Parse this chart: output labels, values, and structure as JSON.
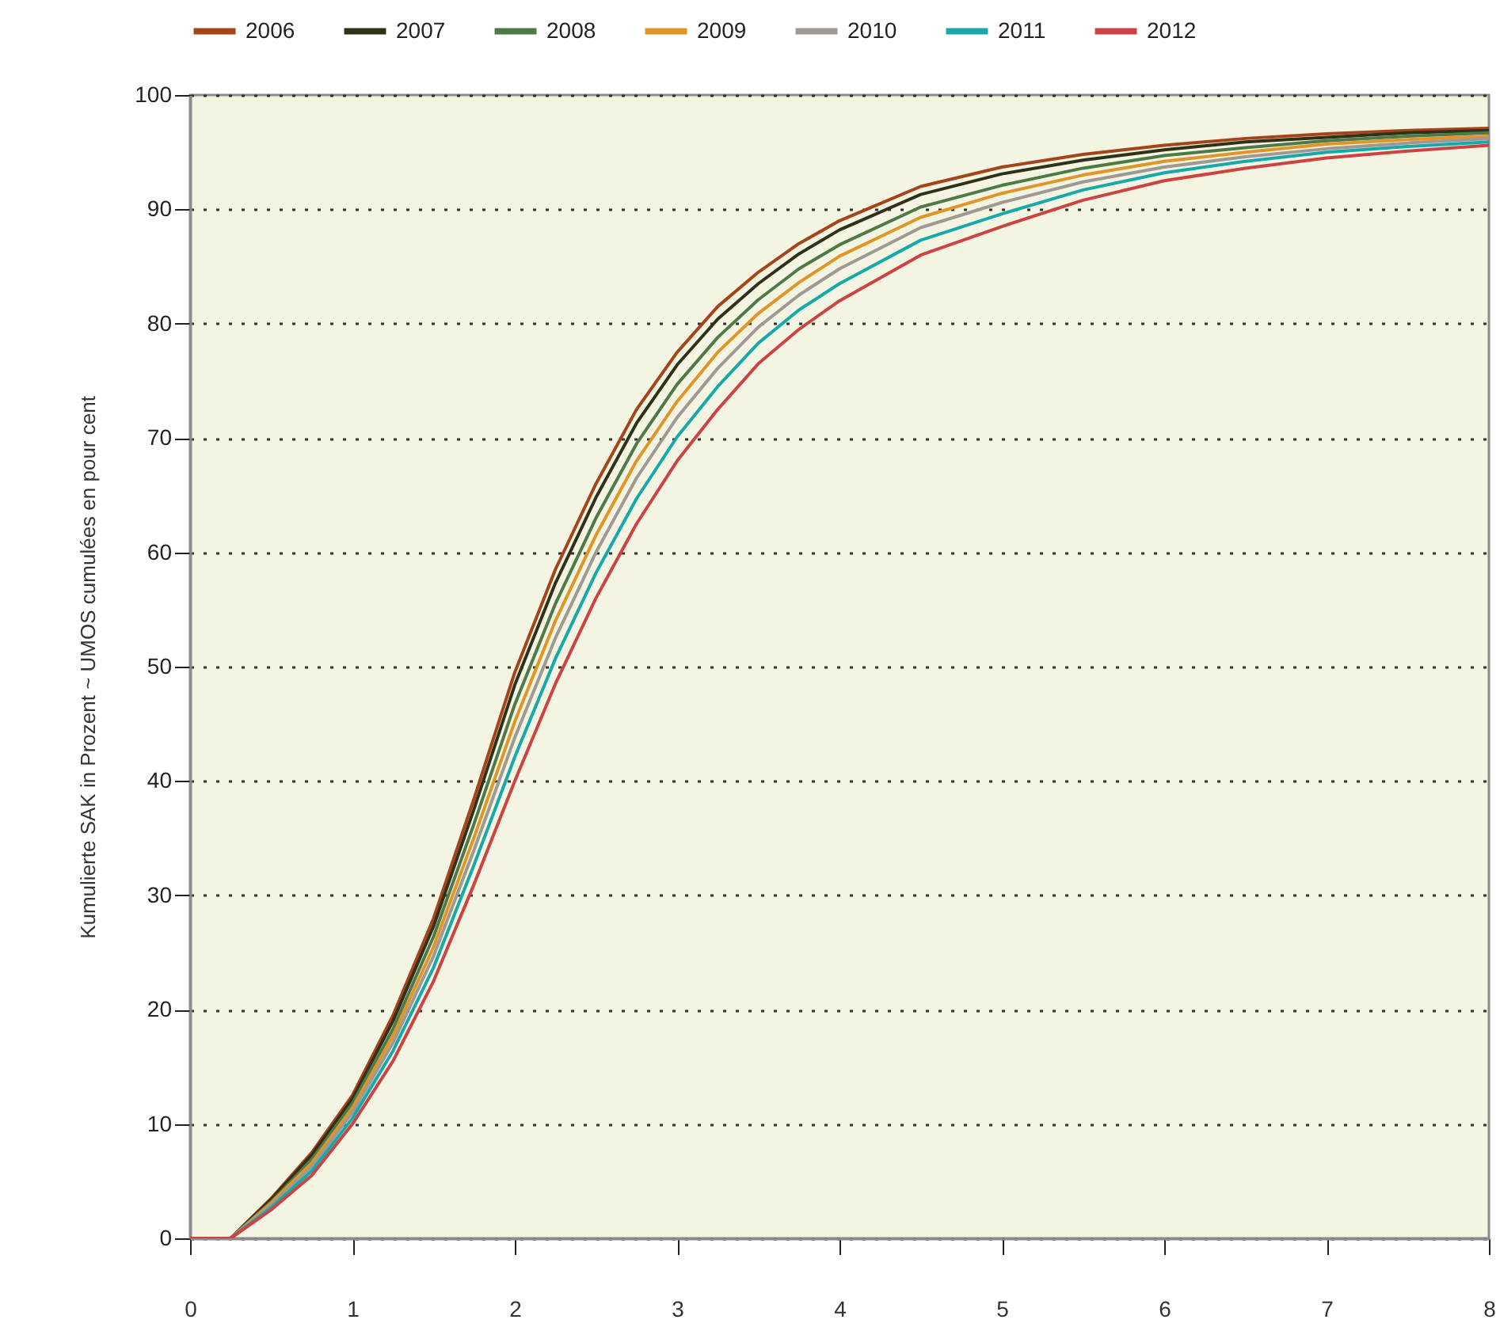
{
  "chart_data": {
    "type": "line",
    "ylabel": "Kumulierte SAK in Prozent ~ UMOS cumulées en pour cent",
    "x": [
      0,
      0.25,
      0.5,
      0.75,
      1,
      1.25,
      1.5,
      1.75,
      2,
      2.25,
      2.5,
      2.75,
      3,
      3.25,
      3.5,
      3.75,
      4,
      4.5,
      5,
      5.5,
      6,
      6.5,
      7,
      7.5,
      8
    ],
    "series": [
      {
        "name": "2006",
        "color": "#a5431a",
        "values": [
          0,
          0,
          3.5,
          7.5,
          12.5,
          19.5,
          28,
          38.5,
          49.5,
          58.5,
          66,
          72.5,
          77.5,
          81.5,
          84.5,
          87,
          89,
          92,
          93.7,
          94.8,
          95.6,
          96.2,
          96.6,
          96.9,
          97.1
        ]
      },
      {
        "name": "2007",
        "color": "#2f3218",
        "values": [
          0,
          0,
          3.4,
          7.3,
          12.2,
          19.0,
          27.3,
          37.6,
          48.4,
          57.3,
          64.8,
          71.3,
          76.4,
          80.4,
          83.5,
          86.1,
          88.2,
          91.3,
          93.1,
          94.3,
          95.2,
          95.9,
          96.3,
          96.7,
          96.9
        ]
      },
      {
        "name": "2008",
        "color": "#4e7a47",
        "values": [
          0,
          0,
          3.2,
          6.9,
          11.8,
          18.3,
          26.4,
          36.3,
          46.7,
          55.5,
          63,
          69.5,
          74.7,
          78.8,
          82.1,
          84.8,
          86.9,
          90.2,
          92.1,
          93.6,
          94.7,
          95.4,
          96,
          96.4,
          96.7
        ]
      },
      {
        "name": "2009",
        "color": "#e09526",
        "values": [
          0,
          0,
          3.1,
          6.6,
          11.4,
          17.7,
          25.5,
          35.1,
          45.2,
          54,
          61.5,
          68,
          73.2,
          77.5,
          80.9,
          83.6,
          85.9,
          89.3,
          91.4,
          93,
          94.2,
          95,
          95.7,
          96.1,
          96.4
        ]
      },
      {
        "name": "2010",
        "color": "#a09892",
        "values": [
          0,
          0,
          2.9,
          6.3,
          11,
          17.1,
          24.7,
          34,
          43.8,
          52.5,
          60,
          66.5,
          71.8,
          76.1,
          79.7,
          82.5,
          84.8,
          88.4,
          90.6,
          92.4,
          93.7,
          94.6,
          95.3,
          95.8,
          96.2
        ]
      },
      {
        "name": "2011",
        "color": "#16a9a9",
        "values": [
          0,
          0,
          2.7,
          5.9,
          10.5,
          16.4,
          23.7,
          32.7,
          42.1,
          50.7,
          58.2,
          64.7,
          70.1,
          74.5,
          78.3,
          81.2,
          83.5,
          87.3,
          89.6,
          91.7,
          93.2,
          94.2,
          95,
          95.5,
          95.9
        ]
      },
      {
        "name": "2012",
        "color": "#cc4343",
        "values": [
          0,
          0,
          2.5,
          5.5,
          10,
          15.5,
          22.5,
          31,
          40,
          48.5,
          56,
          62.5,
          68,
          72.5,
          76.5,
          79.5,
          82,
          86,
          88.5,
          90.8,
          92.5,
          93.6,
          94.5,
          95.1,
          95.6
        ]
      }
    ],
    "xlim": [
      0,
      8
    ],
    "xticks": [
      0,
      1,
      2,
      3,
      4,
      5,
      6,
      7,
      8
    ],
    "ylim": [
      0,
      100
    ],
    "yticks": [
      0,
      10,
      20,
      30,
      40,
      50,
      60,
      70,
      80,
      90,
      100
    ],
    "grid": "y",
    "legend": "top",
    "line_style": "solid",
    "marker": "none"
  }
}
